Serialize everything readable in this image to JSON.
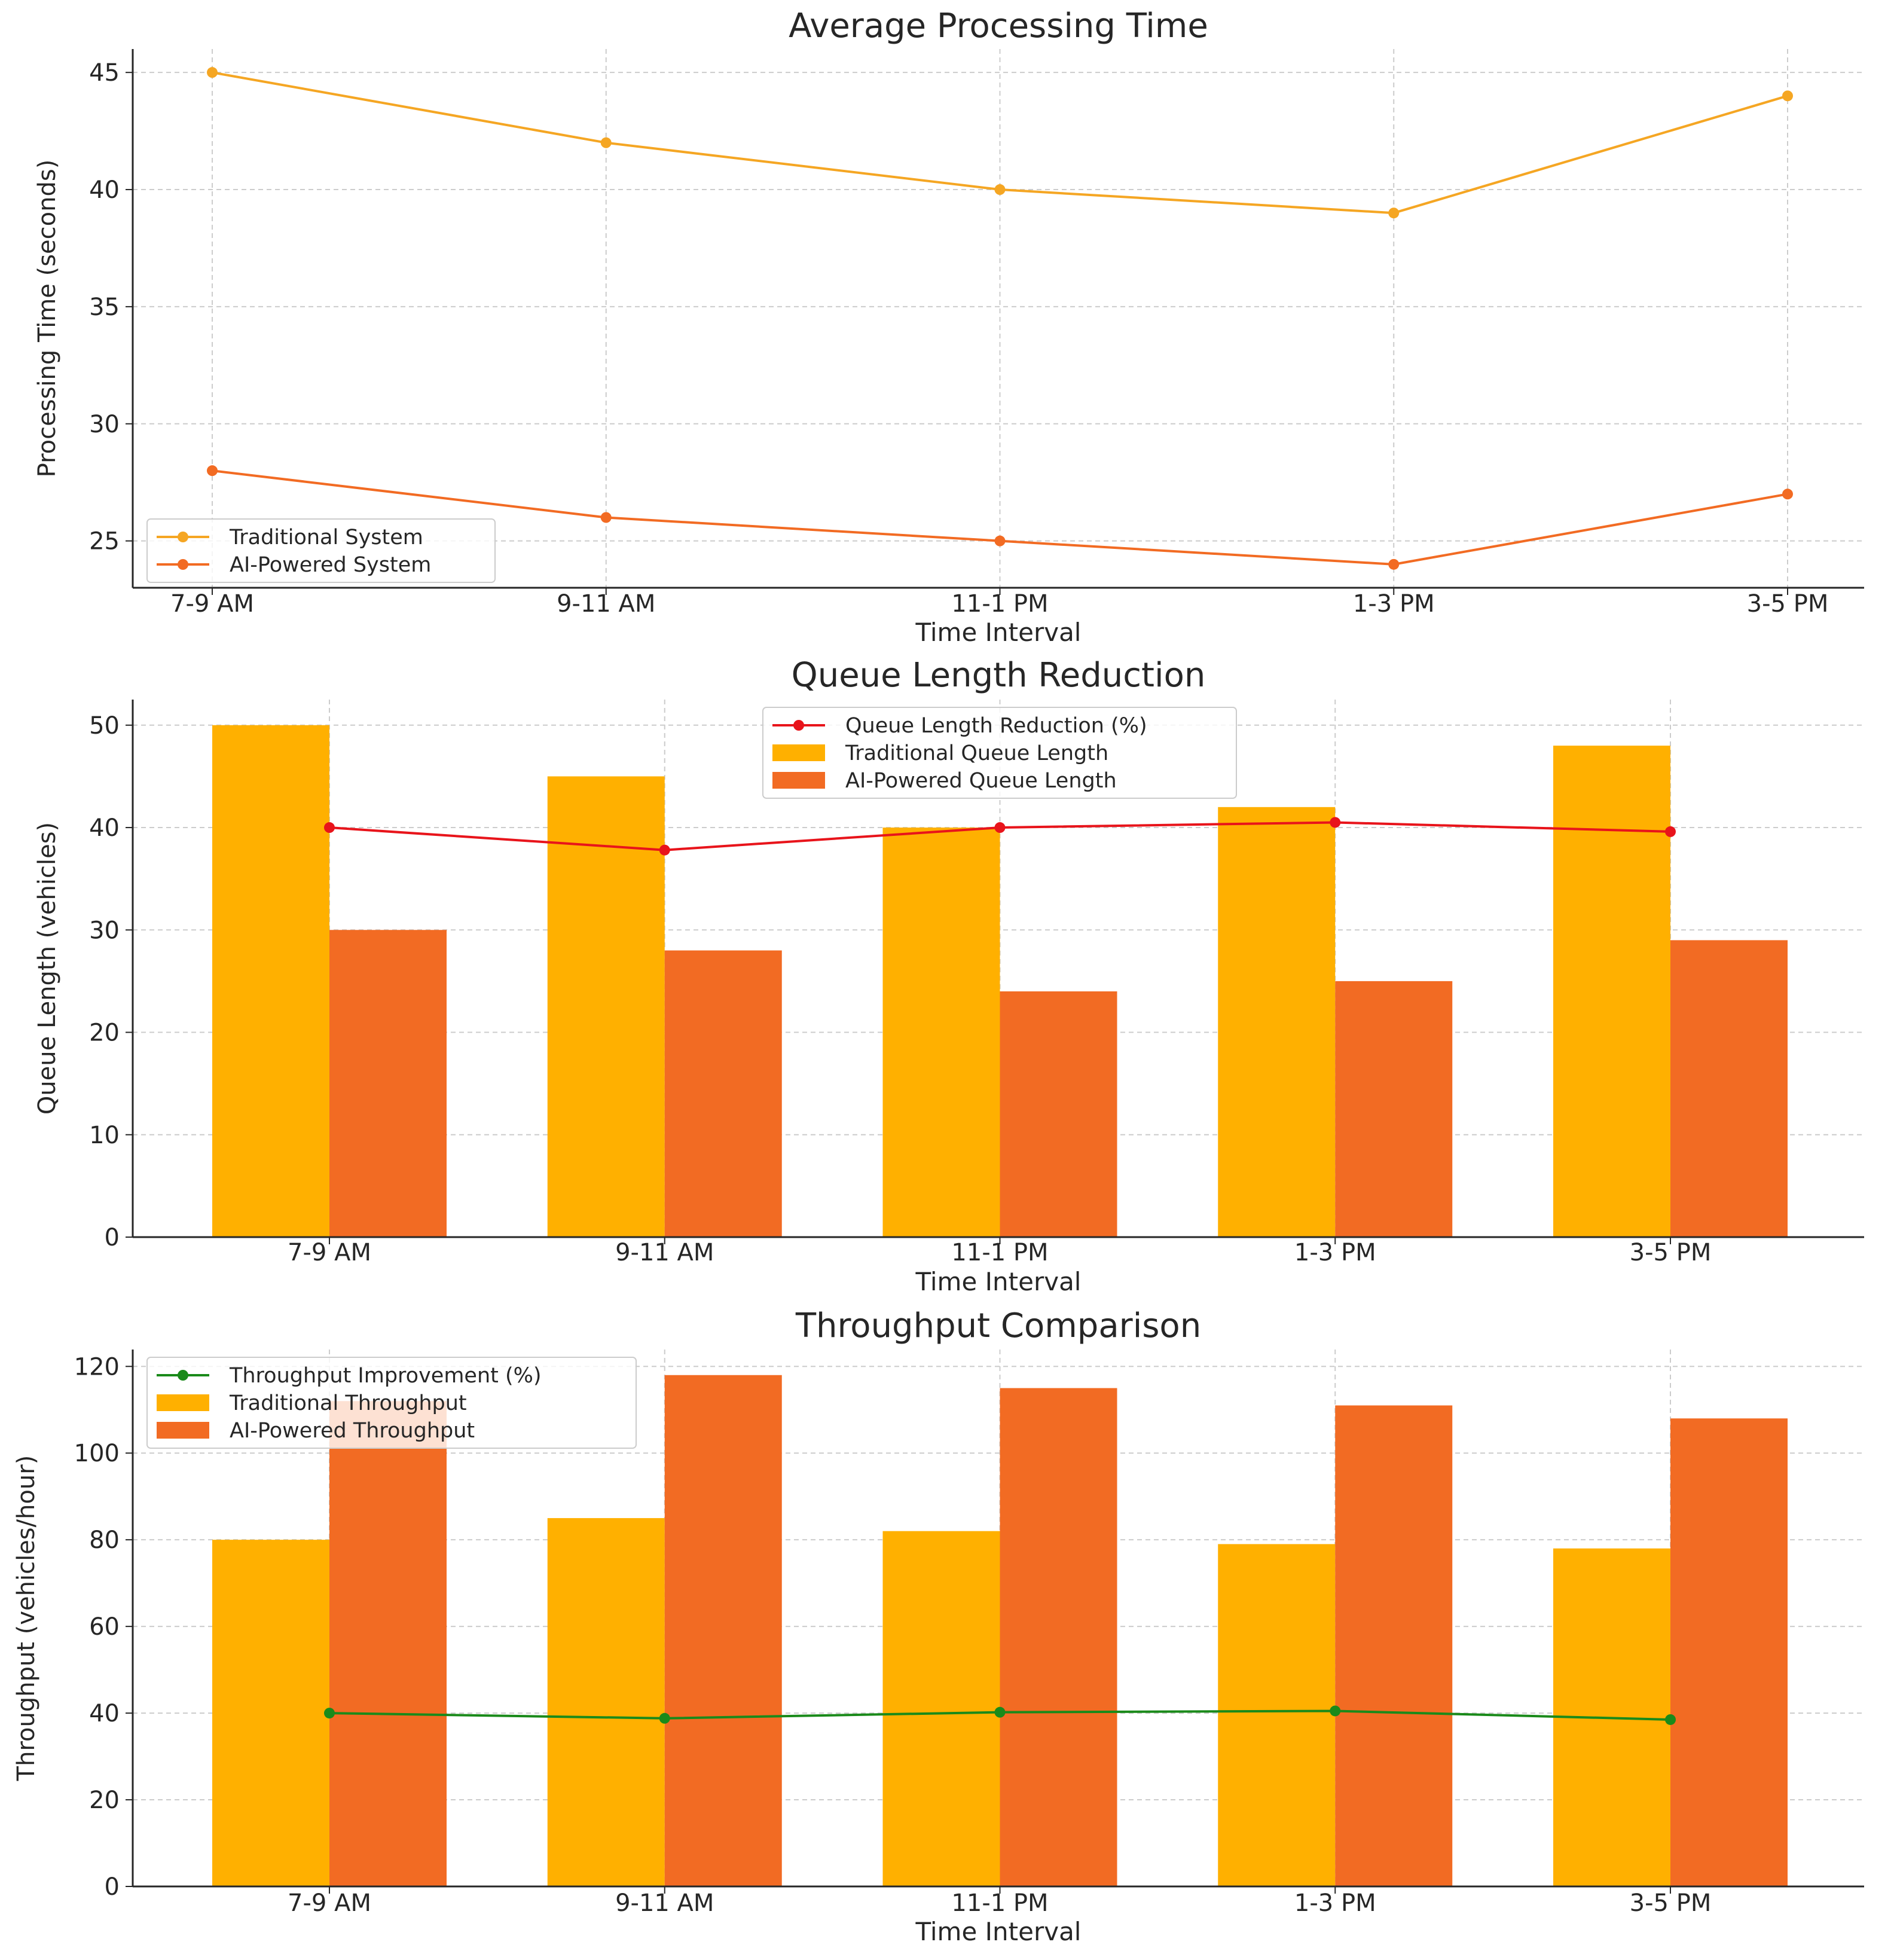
{
  "chart_data": [
    {
      "type": "line",
      "title": "Average Processing Time",
      "xlabel": "Time Interval",
      "ylabel": "Processing Time (seconds)",
      "categories": [
        "7-9 AM",
        "9-11 AM",
        "11-1 PM",
        "1-3 PM",
        "3-5 PM"
      ],
      "ylim": [
        23,
        46
      ],
      "yticks": [
        25,
        30,
        35,
        40,
        45
      ],
      "grid": true,
      "legend_position": "bottom-left",
      "series": [
        {
          "name": "Traditional System",
          "values": [
            45,
            42,
            40,
            39,
            44
          ],
          "color": "#F5A623"
        },
        {
          "name": "AI-Powered System",
          "values": [
            28,
            26,
            25,
            24,
            27
          ],
          "color": "#F26B23"
        }
      ]
    },
    {
      "type": "bar",
      "title": "Queue Length Reduction",
      "xlabel": "Time Interval",
      "ylabel": "Queue Length (vehicles)",
      "categories": [
        "7-9 AM",
        "9-11 AM",
        "11-1 PM",
        "1-3 PM",
        "3-5 PM"
      ],
      "ylim": [
        0,
        52.5
      ],
      "yticks": [
        0,
        10,
        20,
        30,
        40,
        50
      ],
      "grid": true,
      "legend_position": "top-center",
      "series": [
        {
          "name": "Traditional Queue Length",
          "values": [
            50,
            45,
            40,
            42,
            48
          ],
          "color": "#FFB000"
        },
        {
          "name": "AI-Powered Queue Length",
          "values": [
            30,
            28,
            24,
            25,
            29
          ],
          "color": "#F26B23"
        }
      ],
      "line_series": {
        "name": "Queue Length Reduction (%)",
        "values": [
          40.0,
          37.8,
          40.0,
          40.5,
          39.6
        ],
        "color": "#E8141B"
      }
    },
    {
      "type": "bar",
      "title": "Throughput Comparison",
      "xlabel": "Time Interval",
      "ylabel": "Throughput (vehicles/hour)",
      "categories": [
        "7-9 AM",
        "9-11 AM",
        "11-1 PM",
        "1-3 PM",
        "3-5 PM"
      ],
      "ylim": [
        0,
        123.9
      ],
      "yticks": [
        0,
        20,
        40,
        60,
        80,
        100,
        120
      ],
      "grid": true,
      "legend_position": "top-left",
      "series": [
        {
          "name": "Traditional Throughput",
          "values": [
            80,
            85,
            82,
            79,
            78
          ],
          "color": "#FFB000"
        },
        {
          "name": "AI-Powered Throughput",
          "values": [
            112,
            118,
            115,
            111,
            108
          ],
          "color": "#F26B23"
        }
      ],
      "line_series": {
        "name": "Throughput Improvement (%)",
        "values": [
          40.0,
          38.8,
          40.2,
          40.5,
          38.5
        ],
        "color": "#1A8A1A"
      }
    }
  ]
}
